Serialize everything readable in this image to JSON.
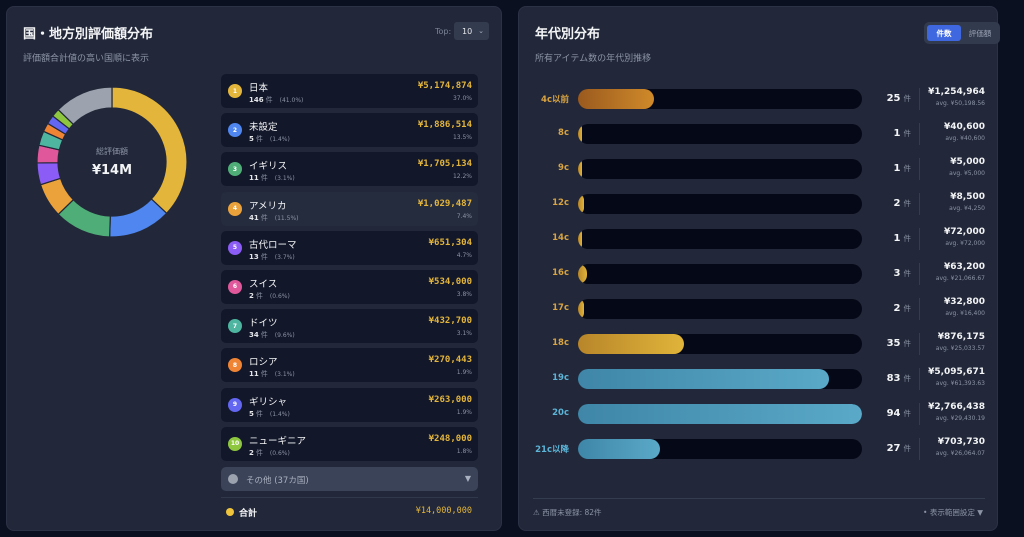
{
  "left_panel": {
    "title": "国・地方別評価額分布",
    "subtitle": "評価額合計値の高い国順に表示",
    "top_label": "Top:",
    "top_value": "10",
    "donut": {
      "center_label": "総評価額",
      "center_value": "¥14M"
    },
    "items": [
      {
        "rank": "1",
        "name": "日本",
        "count": "146",
        "unit": "件",
        "count_pct": "(41.0%)",
        "amount": "¥5,174,874",
        "share": "37.0%",
        "color": "#e3b53b"
      },
      {
        "rank": "2",
        "name": "未設定",
        "count": "5",
        "unit": "件",
        "count_pct": "(1.4%)",
        "amount": "¥1,886,514",
        "share": "13.5%",
        "color": "#4f86ef"
      },
      {
        "rank": "3",
        "name": "イギリス",
        "count": "11",
        "unit": "件",
        "count_pct": "(3.1%)",
        "amount": "¥1,705,134",
        "share": "12.2%",
        "color": "#4fae78"
      },
      {
        "rank": "4",
        "name": "アメリカ",
        "count": "41",
        "unit": "件",
        "count_pct": "(11.5%)",
        "amount": "¥1,029,487",
        "share": "7.4%",
        "color": "#eba23a"
      },
      {
        "rank": "5",
        "name": "古代ローマ",
        "count": "13",
        "unit": "件",
        "count_pct": "(3.7%)",
        "amount": "¥651,304",
        "share": "4.7%",
        "color": "#8b5cf6"
      },
      {
        "rank": "6",
        "name": "スイス",
        "count": "2",
        "unit": "件",
        "count_pct": "(0.6%)",
        "amount": "¥534,000",
        "share": "3.8%",
        "color": "#e0589b"
      },
      {
        "rank": "7",
        "name": "ドイツ",
        "count": "34",
        "unit": "件",
        "count_pct": "(9.6%)",
        "amount": "¥432,700",
        "share": "3.1%",
        "color": "#4db5a0"
      },
      {
        "rank": "8",
        "name": "ロシア",
        "count": "11",
        "unit": "件",
        "count_pct": "(3.1%)",
        "amount": "¥270,443",
        "share": "1.9%",
        "color": "#ef8434"
      },
      {
        "rank": "9",
        "name": "ギリシャ",
        "count": "5",
        "unit": "件",
        "count_pct": "(1.4%)",
        "amount": "¥263,000",
        "share": "1.9%",
        "color": "#6366f1"
      },
      {
        "rank": "10",
        "name": "ニューギニア",
        "count": "2",
        "unit": "件",
        "count_pct": "(0.6%)",
        "amount": "¥248,000",
        "share": "1.8%",
        "color": "#8ec63f"
      }
    ],
    "others": {
      "label": "その他 (37カ国)",
      "color": "#9ca3af",
      "share_pct": 12.7
    },
    "total": {
      "label": "合計",
      "amount": "¥14,000,000"
    }
  },
  "right_panel": {
    "title": "年代別分布",
    "subtitle": "所有アイテム数の年代別推移",
    "toggle": [
      {
        "label": "件数",
        "active": true
      },
      {
        "label": "評価額",
        "active": false
      }
    ],
    "max_count": 94,
    "eras": [
      {
        "label": "4c以前",
        "count": "25",
        "unit": "件",
        "amount": "¥1,254,964",
        "avg": "avg. ¥50,198.56",
        "value": 25,
        "palette": "copper"
      },
      {
        "label": "8c",
        "count": "1",
        "unit": "件",
        "amount": "¥40,600",
        "avg": "avg. ¥40,600",
        "value": 1,
        "palette": "gold"
      },
      {
        "label": "9c",
        "count": "1",
        "unit": "件",
        "amount": "¥5,000",
        "avg": "avg. ¥5,000",
        "value": 1,
        "palette": "gold"
      },
      {
        "label": "12c",
        "count": "2",
        "unit": "件",
        "amount": "¥8,500",
        "avg": "avg. ¥4,250",
        "value": 2,
        "palette": "gold"
      },
      {
        "label": "14c",
        "count": "1",
        "unit": "件",
        "amount": "¥72,000",
        "avg": "avg. ¥72,000",
        "value": 1,
        "palette": "gold"
      },
      {
        "label": "16c",
        "count": "3",
        "unit": "件",
        "amount": "¥63,200",
        "avg": "avg. ¥21,066.67",
        "value": 3,
        "palette": "gold"
      },
      {
        "label": "17c",
        "count": "2",
        "unit": "件",
        "amount": "¥32,800",
        "avg": "avg. ¥16,400",
        "value": 2,
        "palette": "gold"
      },
      {
        "label": "18c",
        "count": "35",
        "unit": "件",
        "amount": "¥876,175",
        "avg": "avg. ¥25,033.57",
        "value": 35,
        "palette": "gold"
      },
      {
        "label": "19c",
        "count": "83",
        "unit": "件",
        "amount": "¥5,095,671",
        "avg": "avg. ¥61,393.63",
        "value": 83,
        "palette": "blue"
      },
      {
        "label": "20c",
        "count": "94",
        "unit": "件",
        "amount": "¥2,766,438",
        "avg": "avg. ¥29,430.19",
        "value": 94,
        "palette": "blue"
      },
      {
        "label": "21c以降",
        "count": "27",
        "unit": "件",
        "amount": "¥703,730",
        "avg": "avg. ¥26,064.07",
        "value": 27,
        "palette": "blue"
      }
    ],
    "footer": {
      "warning": "⚠ 西暦未登録: 82件",
      "settings": "• 表示範囲設定 ▼"
    }
  },
  "chart_data": [
    {
      "type": "pie",
      "title": "国・地方別評価額分布",
      "categories": [
        "日本",
        "未設定",
        "イギリス",
        "アメリカ",
        "古代ローマ",
        "スイス",
        "ドイツ",
        "ロシア",
        "ギリシャ",
        "ニューギニア",
        "その他"
      ],
      "values": [
        37.0,
        13.5,
        12.2,
        7.4,
        4.7,
        3.8,
        3.1,
        1.9,
        1.9,
        1.8,
        12.7
      ],
      "center_text": "総評価額 ¥14M"
    },
    {
      "type": "bar",
      "title": "年代別分布",
      "categories": [
        "4c以前",
        "8c",
        "9c",
        "12c",
        "14c",
        "16c",
        "17c",
        "18c",
        "19c",
        "20c",
        "21c以降"
      ],
      "values": [
        25,
        1,
        1,
        2,
        1,
        3,
        2,
        35,
        83,
        94,
        27
      ],
      "xlabel": "",
      "ylabel": "件数"
    }
  ]
}
